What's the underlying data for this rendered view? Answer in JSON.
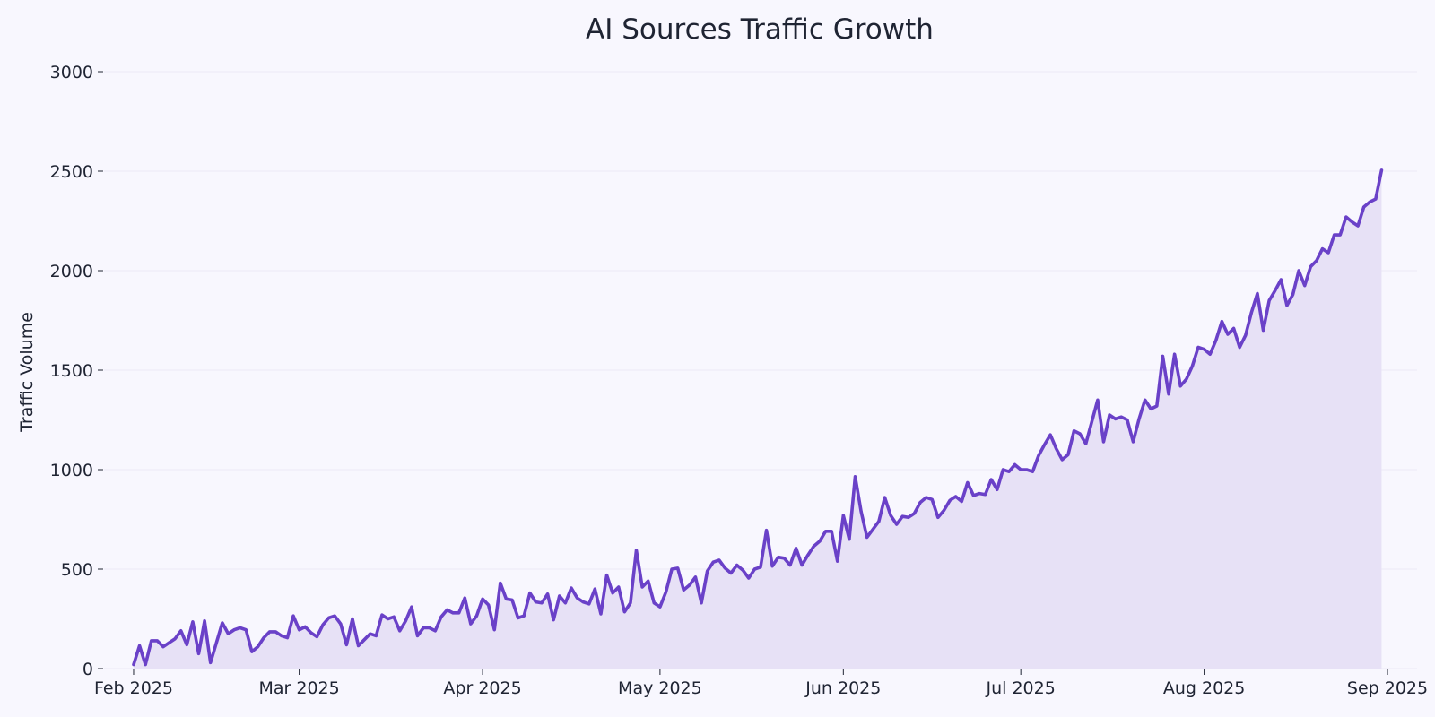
{
  "chart_data": {
    "type": "area",
    "title": "AI Sources Traffic Growth",
    "xlabel": "",
    "ylabel": "Traffic Volume",
    "ylim": [
      0,
      3000
    ],
    "y_ticks": [
      0,
      500,
      1000,
      1500,
      2000,
      2500,
      3000
    ],
    "x_range": [
      "2025-01-27",
      "2025-09-06"
    ],
    "x_ticks": [
      {
        "date": "2025-02-01",
        "label": "Feb 2025"
      },
      {
        "date": "2025-03-01",
        "label": "Mar 2025"
      },
      {
        "date": "2025-04-01",
        "label": "Apr 2025"
      },
      {
        "date": "2025-05-01",
        "label": "May 2025"
      },
      {
        "date": "2025-06-01",
        "label": "Jun 2025"
      },
      {
        "date": "2025-07-01",
        "label": "Jul 2025"
      },
      {
        "date": "2025-08-01",
        "label": "Aug 2025"
      },
      {
        "date": "2025-09-01",
        "label": "Sep 2025"
      }
    ],
    "grid": true,
    "series": [
      {
        "name": "AI Sources",
        "color": "#6a41c8",
        "fill_color": "#e7e1f6",
        "start_date": "2025-02-01",
        "step_days": 1,
        "values": [
          20,
          115,
          20,
          140,
          140,
          110,
          130,
          150,
          190,
          120,
          235,
          75,
          240,
          30,
          130,
          230,
          175,
          195,
          205,
          195,
          85,
          110,
          155,
          185,
          185,
          165,
          155,
          265,
          195,
          210,
          180,
          160,
          220,
          255,
          265,
          225,
          120,
          250,
          115,
          145,
          175,
          165,
          270,
          250,
          260,
          190,
          240,
          310,
          165,
          205,
          205,
          190,
          260,
          295,
          280,
          280,
          355,
          225,
          265,
          350,
          320,
          195,
          430,
          350,
          345,
          255,
          265,
          380,
          335,
          330,
          375,
          245,
          365,
          330,
          405,
          355,
          335,
          325,
          400,
          275,
          470,
          380,
          410,
          285,
          330,
          595,
          410,
          440,
          330,
          310,
          385,
          500,
          505,
          395,
          420,
          460,
          330,
          490,
          535,
          545,
          505,
          480,
          520,
          495,
          455,
          500,
          510,
          695,
          515,
          560,
          555,
          520,
          605,
          520,
          570,
          615,
          640,
          690,
          690,
          540,
          770,
          650,
          965,
          790,
          660,
          700,
          740,
          860,
          770,
          725,
          765,
          760,
          780,
          835,
          860,
          850,
          760,
          795,
          845,
          865,
          840,
          935,
          870,
          880,
          875,
          950,
          900,
          1000,
          990,
          1025,
          1000,
          1000,
          990,
          1070,
          1125,
          1175,
          1105,
          1050,
          1075,
          1195,
          1180,
          1130,
          1240,
          1350,
          1140,
          1275,
          1255,
          1265,
          1250,
          1140,
          1255,
          1350,
          1305,
          1320,
          1570,
          1380,
          1580,
          1420,
          1455,
          1520,
          1615,
          1605,
          1580,
          1650,
          1745,
          1680,
          1710,
          1615,
          1675,
          1790,
          1885,
          1700,
          1850,
          1900,
          1955,
          1825,
          1880,
          2000,
          1925,
          2020,
          2050,
          2110,
          2090,
          2180,
          2180,
          2270,
          2245,
          2225,
          2320,
          2345,
          2360,
          2505
        ]
      }
    ]
  }
}
